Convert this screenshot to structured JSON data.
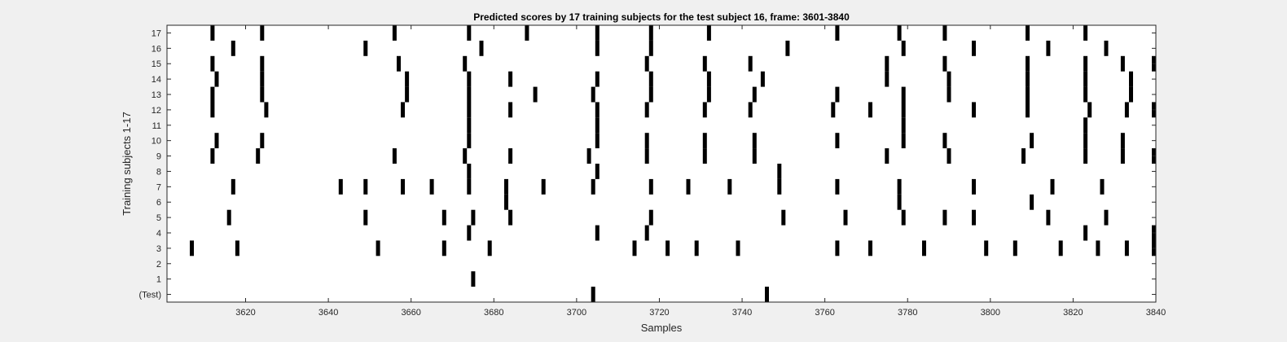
{
  "figure": {
    "background": "#f0f0f0",
    "axes_background": "#ffffff",
    "mark_color": "#000000"
  },
  "chart_data": {
    "type": "raster",
    "title": "Predicted scores by 17 training subjects for the test subject 16, frame: 3601-3840",
    "xlabel": "Samples",
    "ylabel": "Training subjects 1-17",
    "xlim": [
      3601,
      3840
    ],
    "xticks": [
      3620,
      3640,
      3660,
      3680,
      3700,
      3720,
      3740,
      3760,
      3780,
      3800,
      3820,
      3840
    ],
    "rows": [
      "(Test)",
      "1",
      "2",
      "3",
      "4",
      "5",
      "6",
      "7",
      "8",
      "9",
      "10",
      "11",
      "12",
      "13",
      "14",
      "15",
      "16",
      "17"
    ],
    "grid": false,
    "legend": "none",
    "events": [
      {
        "row": "(Test)",
        "samples": [
          3704,
          3746
        ]
      },
      {
        "row": "1",
        "samples": [
          3675
        ]
      },
      {
        "row": "2",
        "samples": []
      },
      {
        "row": "3",
        "samples": [
          3607,
          3618,
          3652,
          3668,
          3679,
          3714,
          3722,
          3729,
          3739,
          3763,
          3771,
          3784,
          3799,
          3806,
          3817,
          3826,
          3833,
          3840
        ]
      },
      {
        "row": "4",
        "samples": [
          3674,
          3705,
          3717,
          3823,
          3840
        ]
      },
      {
        "row": "5",
        "samples": [
          3616,
          3649,
          3668,
          3675,
          3684,
          3718,
          3750,
          3765,
          3779,
          3789,
          3796,
          3814,
          3828
        ]
      },
      {
        "row": "6",
        "samples": [
          3683,
          3778,
          3810
        ]
      },
      {
        "row": "7",
        "samples": [
          3617,
          3643,
          3649,
          3658,
          3665,
          3674,
          3683,
          3692,
          3704,
          3718,
          3727,
          3737,
          3749,
          3763,
          3778,
          3796,
          3815,
          3827
        ]
      },
      {
        "row": "8",
        "samples": [
          3674,
          3705,
          3749
        ]
      },
      {
        "row": "9",
        "samples": [
          3612,
          3623,
          3656,
          3673,
          3684,
          3703,
          3717,
          3731,
          3743,
          3775,
          3790,
          3808,
          3823,
          3832,
          3840
        ]
      },
      {
        "row": "10",
        "samples": [
          3613,
          3624,
          3674,
          3705,
          3717,
          3731,
          3743,
          3763,
          3779,
          3789,
          3810,
          3823,
          3832
        ]
      },
      {
        "row": "11",
        "samples": [
          3674,
          3705,
          3779,
          3823
        ]
      },
      {
        "row": "12",
        "samples": [
          3612,
          3625,
          3658,
          3674,
          3684,
          3705,
          3717,
          3731,
          3742,
          3762,
          3771,
          3779,
          3796,
          3809,
          3824,
          3833,
          3840
        ]
      },
      {
        "row": "13",
        "samples": [
          3612,
          3624,
          3659,
          3674,
          3690,
          3704,
          3718,
          3732,
          3743,
          3763,
          3779,
          3790,
          3809,
          3823,
          3834
        ]
      },
      {
        "row": "14",
        "samples": [
          3613,
          3624,
          3659,
          3674,
          3684,
          3705,
          3718,
          3732,
          3745,
          3775,
          3790,
          3809,
          3823,
          3834
        ]
      },
      {
        "row": "15",
        "samples": [
          3612,
          3624,
          3657,
          3673,
          3717,
          3731,
          3742,
          3775,
          3789,
          3809,
          3823,
          3832,
          3840
        ]
      },
      {
        "row": "16",
        "samples": [
          3617,
          3649,
          3677,
          3705,
          3718,
          3751,
          3779,
          3796,
          3814,
          3828
        ]
      },
      {
        "row": "17",
        "samples": [
          3612,
          3624,
          3656,
          3674,
          3688,
          3705,
          3718,
          3732,
          3763,
          3778,
          3789,
          3809,
          3823
        ]
      }
    ]
  }
}
